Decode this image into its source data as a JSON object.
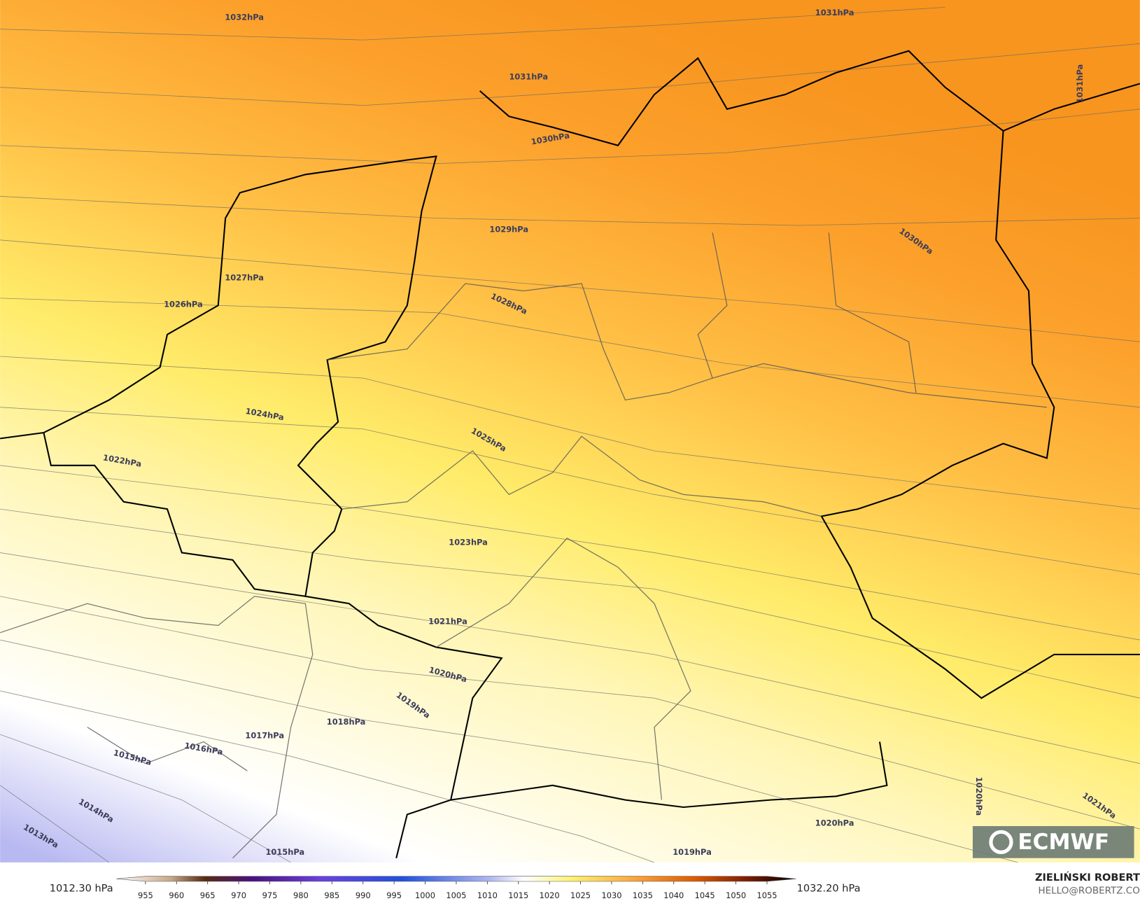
{
  "map": {
    "isobar_labels": [
      "1032hPa",
      "1031hPa",
      "1031hPa",
      "1031hPa",
      "1030hPa",
      "1030hPa",
      "1029hPa",
      "1028hPa",
      "1027hPa",
      "1026hPa",
      "1025hPa",
      "1024hPa",
      "1023hPa",
      "1022hPa",
      "1021hPa",
      "1020hPa",
      "1019hPa",
      "1018hPa",
      "1017hPa",
      "1016hPa",
      "1015hPa",
      "1014hPa",
      "1013hPa",
      "1015hPa",
      "1019hPa",
      "1020hPa",
      "1020hPa",
      "1021hPa"
    ]
  },
  "colorbar": {
    "min_label": "1012.30 hPa",
    "max_label": "1032.20 hPa",
    "ticks": [
      955,
      960,
      965,
      970,
      975,
      980,
      985,
      990,
      995,
      1000,
      1005,
      1010,
      1015,
      1020,
      1025,
      1030,
      1035,
      1040,
      1045,
      1050,
      1055
    ]
  },
  "credits": {
    "author": "ZIELIŃSKI ROBERT",
    "email": "HELLO@ROBERTZ.CO"
  },
  "logo": "ECMWF"
}
